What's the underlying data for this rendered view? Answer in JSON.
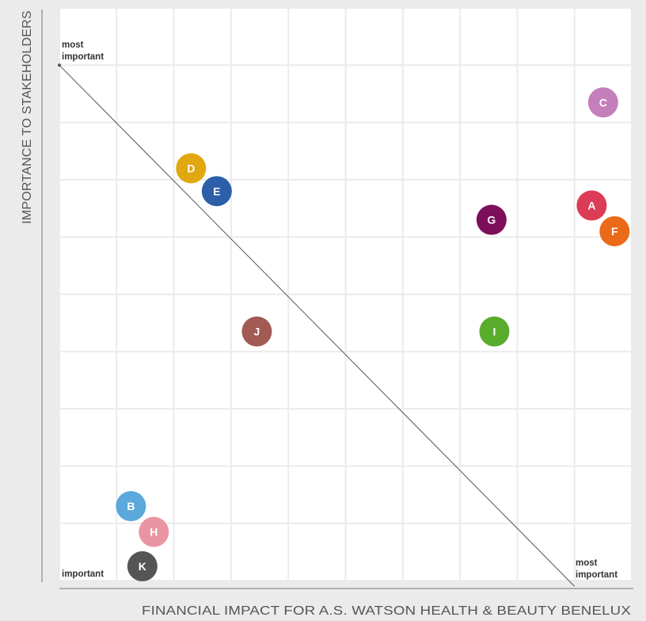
{
  "chart_data": {
    "type": "scatter",
    "title": "",
    "xlabel": "FINANCIAL IMPACT FOR A.S. WATSON HEALTH & BEAUTY BENELUX",
    "ylabel": "IMPORTANCE TO STAKEHOLDERS",
    "grid": true,
    "grid_columns": 10,
    "grid_rows": 10,
    "xlim": [
      0,
      10
    ],
    "ylim": [
      0,
      10
    ],
    "annotations": {
      "top_left_line1": "most",
      "top_left_line2": "important",
      "bottom_left": "important",
      "bottom_right_line1": "most",
      "bottom_right_line2": "important"
    },
    "diagonal": {
      "from": [
        0,
        9
      ],
      "to": [
        9,
        -0.1
      ]
    },
    "points": [
      {
        "label": "A",
        "x": 9.3,
        "y": 6.55,
        "color": "#dc3c55"
      },
      {
        "label": "B",
        "x": 1.25,
        "y": 1.3,
        "color": "#5aa8dc"
      },
      {
        "label": "C",
        "x": 9.5,
        "y": 8.35,
        "color": "#c57fbb"
      },
      {
        "label": "D",
        "x": 2.3,
        "y": 7.2,
        "color": "#e0a80e"
      },
      {
        "label": "E",
        "x": 2.75,
        "y": 6.8,
        "color": "#2d5ea9"
      },
      {
        "label": "F",
        "x": 9.7,
        "y": 6.1,
        "color": "#ea6a1a"
      },
      {
        "label": "G",
        "x": 7.55,
        "y": 6.3,
        "color": "#7d0e5a"
      },
      {
        "label": "H",
        "x": 1.65,
        "y": 0.85,
        "color": "#e995a1"
      },
      {
        "label": "I",
        "x": 7.6,
        "y": 4.35,
        "color": "#5aac2d"
      },
      {
        "label": "J",
        "x": 3.45,
        "y": 4.35,
        "color": "#a25a55"
      },
      {
        "label": "K",
        "x": 1.45,
        "y": 0.25,
        "color": "#555555"
      }
    ],
    "colors": {
      "background": "#ebebeb",
      "cell": "#ffffff",
      "axis_line": "#777777",
      "diagonal": "#555555"
    }
  }
}
